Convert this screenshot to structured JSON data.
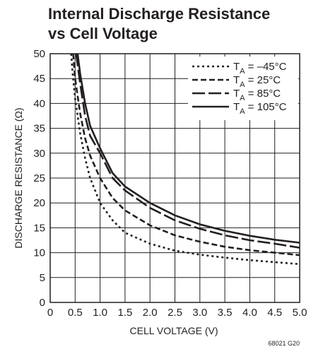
{
  "chart_data": {
    "type": "line",
    "title": "Internal Discharge Resistance vs Cell Voltage",
    "title_lines": [
      "Internal Discharge Resistance",
      "vs Cell Voltage"
    ],
    "xlabel": "CELL VOLTAGE (V)",
    "ylabel": "DISCHARGE RESISTANCE (Ω)",
    "xlim": [
      0,
      5.0
    ],
    "ylim": [
      0,
      50
    ],
    "x_ticks": [
      "0",
      "0.5",
      "1.0",
      "1.5",
      "2.0",
      "2.5",
      "3.0",
      "3.5",
      "4.0",
      "4.5",
      "5.0"
    ],
    "y_ticks": [
      "0",
      "5",
      "10",
      "15",
      "20",
      "25",
      "30",
      "35",
      "40",
      "45",
      "50"
    ],
    "grid": true,
    "legend_position": "top-right",
    "series": [
      {
        "name": "TA = –45°C",
        "legend_main": "T",
        "legend_sub": "A",
        "legend_rest": " = –45°C",
        "style": "dotted",
        "x": [
          0.42,
          0.45,
          0.5,
          0.6,
          0.7,
          0.8,
          1.0,
          1.25,
          1.5,
          2.0,
          2.5,
          3.0,
          3.5,
          4.0,
          4.5,
          5.0
        ],
        "y": [
          50,
          46,
          41,
          34,
          29,
          25,
          20,
          16.5,
          14,
          11.8,
          10.4,
          9.6,
          9.0,
          8.5,
          8.1,
          7.7
        ]
      },
      {
        "name": "TA = 25°C",
        "legend_main": "T",
        "legend_sub": "A",
        "legend_rest": " = 25°C",
        "style": "short-dash",
        "x": [
          0.46,
          0.5,
          0.6,
          0.7,
          0.8,
          1.0,
          1.25,
          1.5,
          2.0,
          2.5,
          3.0,
          3.5,
          4.0,
          4.5,
          5.0
        ],
        "y": [
          50,
          45,
          38,
          33,
          29.5,
          25,
          21,
          18.5,
          15.5,
          13.5,
          12.2,
          11.2,
          10.5,
          10,
          9.5
        ]
      },
      {
        "name": "TA = 85°C",
        "legend_main": "T",
        "legend_sub": "A",
        "legend_rest": " = 85°C",
        "style": "long-dash",
        "x": [
          0.52,
          0.6,
          0.7,
          0.8,
          1.0,
          1.25,
          1.5,
          2.0,
          2.5,
          3.0,
          3.5,
          4.0,
          4.5,
          5.0
        ],
        "y": [
          50,
          44,
          37.5,
          33.5,
          30,
          25,
          22.5,
          19,
          16.5,
          14.8,
          13.5,
          12.5,
          11.8,
          11
        ]
      },
      {
        "name": "TA = 105°C",
        "legend_main": "T",
        "legend_sub": "A",
        "legend_rest": " = 105°C",
        "style": "solid",
        "x": [
          0.55,
          0.6,
          0.7,
          0.8,
          1.0,
          1.25,
          1.5,
          2.0,
          2.5,
          3.0,
          3.5,
          4.0,
          4.5,
          5.0
        ],
        "y": [
          50,
          46,
          40,
          35.5,
          31,
          26,
          23.3,
          20,
          17.5,
          15.7,
          14.4,
          13.4,
          12.6,
          12
        ]
      }
    ]
  },
  "figure_code": "68021 G20"
}
